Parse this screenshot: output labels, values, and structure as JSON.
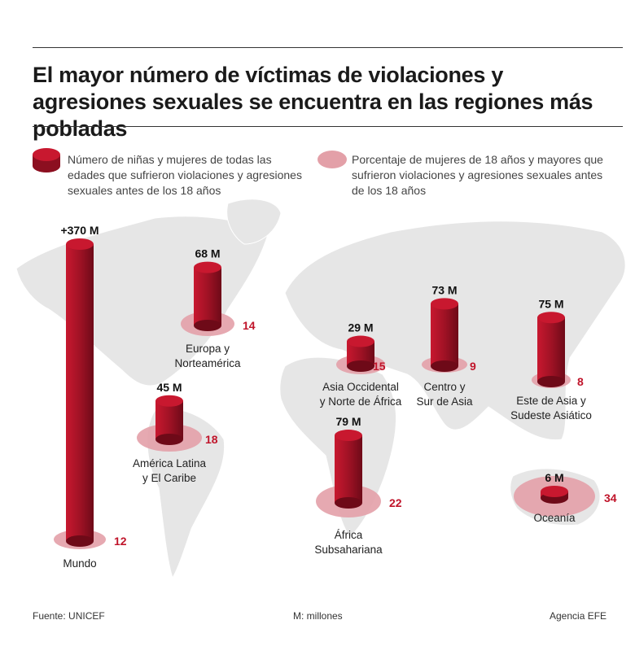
{
  "title": "El mayor número de víctimas de violaciones y agresiones sexuales se encuentra en las regiones más pobladas",
  "legend": {
    "count": "Número de niñas y mujeres de todas las edades que sufrieron violaciones y agresiones sexuales antes de los 18 años",
    "percent": "Porcentaje de mujeres de 18 años y mayores que sufrieron violaciones y agresiones sexuales antes de los 18 años"
  },
  "footer": {
    "source": "Fuente: UNICEF",
    "unit": "M: millones",
    "agency": "Agencia EFE"
  },
  "colors": {
    "cylinder": "#b0142a",
    "percent_disc": "#e3a0a8",
    "map": "#e6e6e6",
    "percent_text": "#c0142a"
  },
  "chart_data": {
    "type": "bar",
    "subtype": "3d-cylinder-on-map",
    "unit": "M",
    "regions": [
      {
        "name": "Mundo",
        "count_label": "+370 M",
        "count": 370,
        "percent": 12
      },
      {
        "name": "Europa y Norteamérica",
        "count_label": "68 M",
        "count": 68,
        "percent": 14
      },
      {
        "name": "América Latina y El Caribe",
        "count_label": "45 M",
        "count": 45,
        "percent": 18
      },
      {
        "name": "Asia Occidental y Norte de África",
        "count_label": "29 M",
        "count": 29,
        "percent": 15
      },
      {
        "name": "Centro y Sur de Asia",
        "count_label": "73 M",
        "count": 73,
        "percent": 9
      },
      {
        "name": "Este de Asia y Sudeste Asiático",
        "count_label": "75 M",
        "count": 75,
        "percent": 8
      },
      {
        "name": "África Subsahariana",
        "count_label": "79 M",
        "count": 79,
        "percent": 22
      },
      {
        "name": "Oceanía",
        "count_label": "6 M",
        "count": 6,
        "percent": 34
      }
    ]
  }
}
